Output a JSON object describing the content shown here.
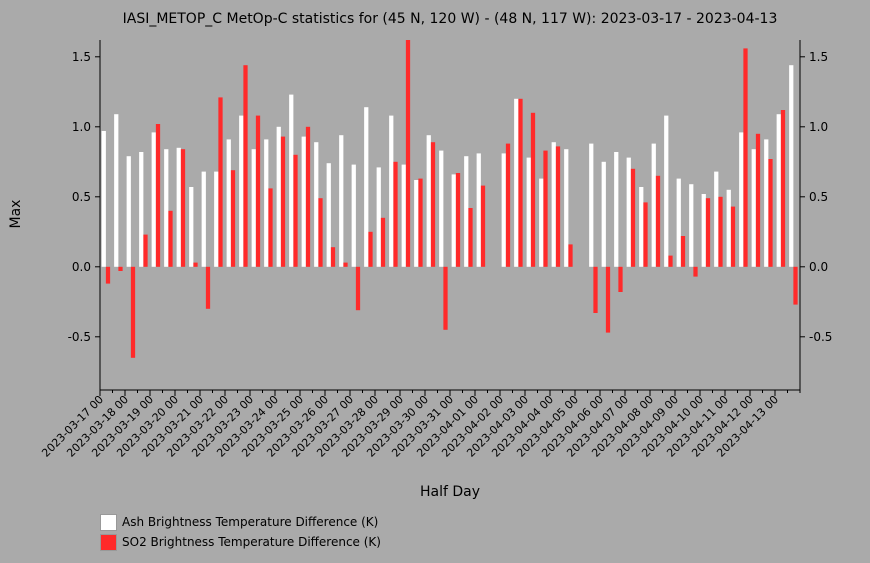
{
  "chart_data": {
    "type": "bar",
    "title": "IASI_METOP_C MetOp-C statistics for (45 N, 120 W) - (48 N, 117 W): 2023-03-17 - 2023-04-13",
    "xlabel": "Half Day",
    "ylabel": "Max",
    "ylim": [
      -0.88,
      1.62
    ],
    "yticks": [
      -0.5,
      0.0,
      0.5,
      1.0,
      1.5
    ],
    "ytick_labels": [
      "-0.5",
      "0.0",
      "0.5",
      "1.0",
      "1.5"
    ],
    "grid": false,
    "legend_position": "bottom-left",
    "x_tick_labels": [
      "2023-03-17 00",
      "2023-03-18 00",
      "2023-03-19 00",
      "2023-03-20 00",
      "2023-03-21 00",
      "2023-03-22 00",
      "2023-03-23 00",
      "2023-03-24 00",
      "2023-03-25 00",
      "2023-03-26 00",
      "2023-03-27 00",
      "2023-03-28 00",
      "2023-03-29 00",
      "2023-03-30 00",
      "2023-03-31 00",
      "2023-04-01 00",
      "2023-04-02 00",
      "2023-04-03 00",
      "2023-04-04 00",
      "2023-04-05 00",
      "2023-04-06 00",
      "2023-04-07 00",
      "2023-04-08 00",
      "2023-04-09 00",
      "2023-04-10 00",
      "2023-04-11 00",
      "2023-04-12 00",
      "2023-04-13 00"
    ],
    "series": [
      {
        "name": "Ash Brightness Temperature Difference (K)",
        "color": "#ffffff",
        "values": [
          0.97,
          1.09,
          0.79,
          0.82,
          0.96,
          0.84,
          0.85,
          0.57,
          0.68,
          0.68,
          0.91,
          1.08,
          0.84,
          0.91,
          1.0,
          1.23,
          0.93,
          0.89,
          0.74,
          0.94,
          0.73,
          1.14,
          0.71,
          1.08,
          0.73,
          0.62,
          0.94,
          0.83,
          0.66,
          0.79,
          0.81,
          null,
          0.81,
          1.2,
          0.78,
          0.63,
          0.89,
          0.84,
          null,
          0.88,
          0.75,
          0.82,
          0.78,
          0.57,
          0.88,
          1.08,
          0.63,
          0.59,
          0.52,
          0.68,
          0.55,
          0.96,
          0.84,
          0.91,
          1.09,
          1.44
        ]
      },
      {
        "name": "SO2 Brightness Temperature Difference (K)",
        "color": "#ff2a2a",
        "values": [
          -0.12,
          -0.03,
          -0.65,
          0.23,
          1.02,
          0.4,
          0.84,
          0.03,
          -0.3,
          1.21,
          0.69,
          1.44,
          1.08,
          0.56,
          0.93,
          0.8,
          1.0,
          0.49,
          0.14,
          0.03,
          -0.31,
          0.25,
          0.35,
          0.75,
          1.62,
          0.63,
          0.89,
          -0.45,
          0.67,
          0.42,
          0.58,
          null,
          0.88,
          1.2,
          1.1,
          0.83,
          0.86,
          0.16,
          null,
          -0.33,
          -0.47,
          -0.18,
          0.7,
          0.46,
          0.65,
          0.08,
          0.22,
          -0.07,
          0.49,
          0.5,
          0.43,
          1.56,
          0.95,
          0.77,
          1.12,
          -0.27
        ]
      }
    ]
  }
}
